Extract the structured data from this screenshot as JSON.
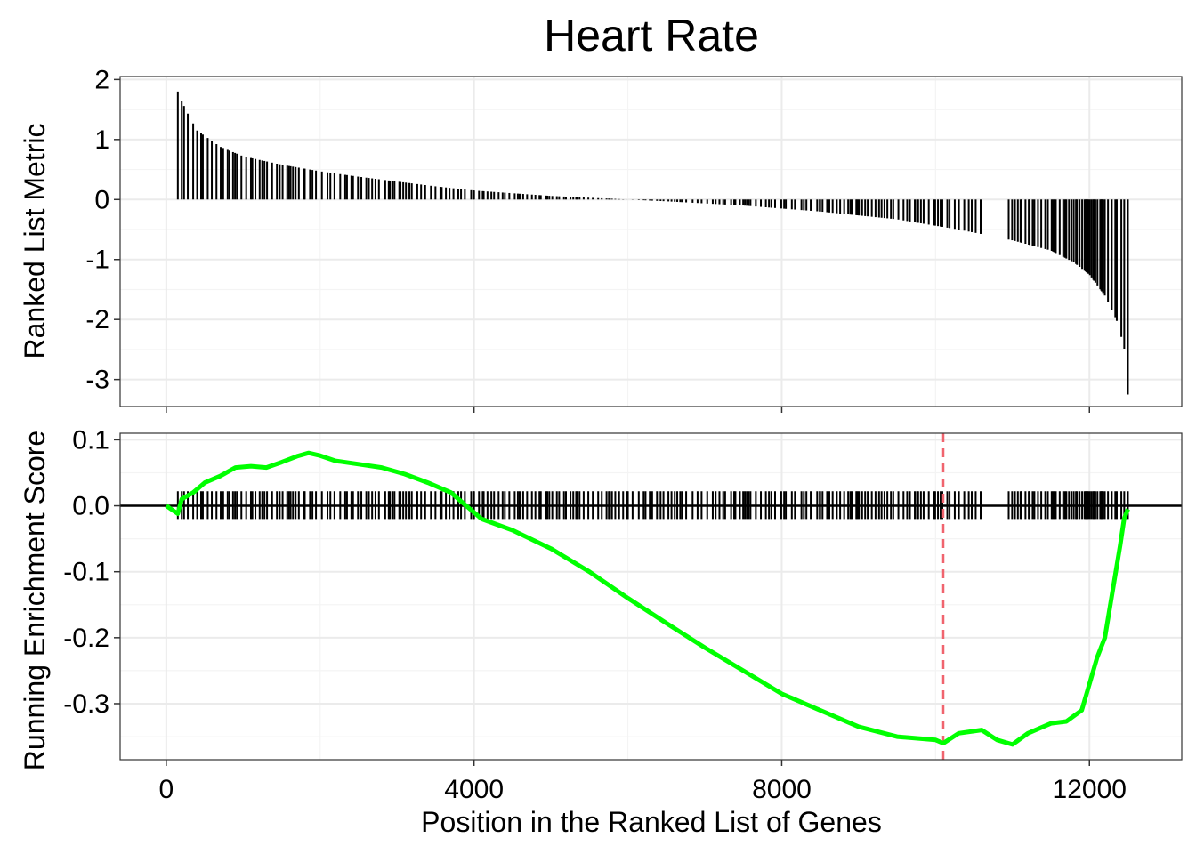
{
  "chart_data": {
    "type": "gsea_enrichment_plot",
    "title": "Heart Rate",
    "xlabel": "Position in the Ranked List of Genes",
    "xlim": [
      -600,
      13200
    ],
    "x_ticks": [
      0,
      4000,
      8000,
      12000
    ],
    "x_tick_labels": [
      "0",
      "4000",
      "8000",
      "12000"
    ],
    "grid": true,
    "panels": [
      {
        "id": "ranked_metric",
        "type": "bar",
        "ylabel": "Ranked List Metric",
        "ylim": [
          -3.45,
          2.05
        ],
        "y_ticks": [
          2,
          1,
          0,
          -1,
          -2,
          -3
        ],
        "y_tick_labels": [
          "2",
          "1",
          "0",
          "-1",
          "-2",
          "-3"
        ],
        "bar_color": "#000000",
        "hit_positions_note": "bars drawn at gene-set hit positions",
        "curve_points": [
          [
            150,
            1.8
          ],
          [
            250,
            1.5
          ],
          [
            400,
            1.15
          ],
          [
            700,
            0.88
          ],
          [
            1000,
            0.72
          ],
          [
            1500,
            0.58
          ],
          [
            2000,
            0.47
          ],
          [
            2500,
            0.38
          ],
          [
            3000,
            0.3
          ],
          [
            3500,
            0.22
          ],
          [
            4000,
            0.15
          ],
          [
            5000,
            0.06
          ],
          [
            6000,
            0.0
          ],
          [
            6500,
            -0.03
          ],
          [
            7500,
            -0.1
          ],
          [
            8500,
            -0.2
          ],
          [
            9500,
            -0.33
          ],
          [
            10300,
            -0.5
          ],
          [
            11000,
            -0.68
          ],
          [
            11500,
            -0.85
          ],
          [
            11800,
            -1.05
          ],
          [
            12000,
            -1.25
          ],
          [
            12200,
            -1.6
          ],
          [
            12350,
            -2.0
          ],
          [
            12450,
            -2.45
          ],
          [
            12500,
            -3.25
          ]
        ]
      },
      {
        "id": "running_es",
        "type": "line",
        "ylabel": "Running Enrichment Score",
        "ylim": [
          -0.385,
          0.11
        ],
        "y_ticks": [
          0.1,
          0.0,
          -0.1,
          -0.2,
          -0.3
        ],
        "y_tick_labels": [
          "0.1",
          "0.0",
          "-0.1",
          "-0.2",
          "-0.3"
        ],
        "line_color": "#00ff00",
        "zero_line_color": "#000000",
        "peak_marker_x": 10100,
        "peak_marker_color": "#f0646e",
        "hit_tick_range": [
          -0.02,
          0.022
        ],
        "series": [
          {
            "points": [
              [
                0,
                0.0
              ],
              [
                150,
                -0.012
              ],
              [
                200,
                0.01
              ],
              [
                350,
                0.02
              ],
              [
                500,
                0.035
              ],
              [
                700,
                0.045
              ],
              [
                900,
                0.058
              ],
              [
                1100,
                0.06
              ],
              [
                1300,
                0.058
              ],
              [
                1500,
                0.066
              ],
              [
                1700,
                0.075
              ],
              [
                1850,
                0.08
              ],
              [
                2000,
                0.076
              ],
              [
                2200,
                0.068
              ],
              [
                2500,
                0.063
              ],
              [
                2800,
                0.058
              ],
              [
                3100,
                0.048
              ],
              [
                3400,
                0.035
              ],
              [
                3700,
                0.02
              ],
              [
                3900,
                0.0
              ],
              [
                4100,
                -0.02
              ],
              [
                4500,
                -0.037
              ],
              [
                5000,
                -0.065
              ],
              [
                5500,
                -0.1
              ],
              [
                6000,
                -0.14
              ],
              [
                6500,
                -0.178
              ],
              [
                7000,
                -0.215
              ],
              [
                7500,
                -0.25
              ],
              [
                8000,
                -0.285
              ],
              [
                8500,
                -0.31
              ],
              [
                9000,
                -0.335
              ],
              [
                9500,
                -0.35
              ],
              [
                10000,
                -0.355
              ],
              [
                10100,
                -0.36
              ],
              [
                10300,
                -0.345
              ],
              [
                10600,
                -0.34
              ],
              [
                10800,
                -0.355
              ],
              [
                11000,
                -0.362
              ],
              [
                11200,
                -0.345
              ],
              [
                11500,
                -0.33
              ],
              [
                11700,
                -0.327
              ],
              [
                11900,
                -0.31
              ],
              [
                12000,
                -0.27
              ],
              [
                12100,
                -0.23
              ],
              [
                12200,
                -0.2
              ],
              [
                12300,
                -0.13
              ],
              [
                12400,
                -0.06
              ],
              [
                12450,
                -0.02
              ],
              [
                12500,
                -0.005
              ]
            ]
          }
        ]
      }
    ],
    "hit_bands": [
      [
        150,
        1800,
        3
      ],
      [
        1800,
        4000,
        2
      ],
      [
        4000,
        6000,
        3
      ],
      [
        6000,
        8500,
        2
      ],
      [
        8500,
        10600,
        3
      ],
      [
        10950,
        11700,
        4
      ],
      [
        11700,
        12200,
        5
      ],
      [
        12200,
        12500,
        3
      ]
    ]
  }
}
